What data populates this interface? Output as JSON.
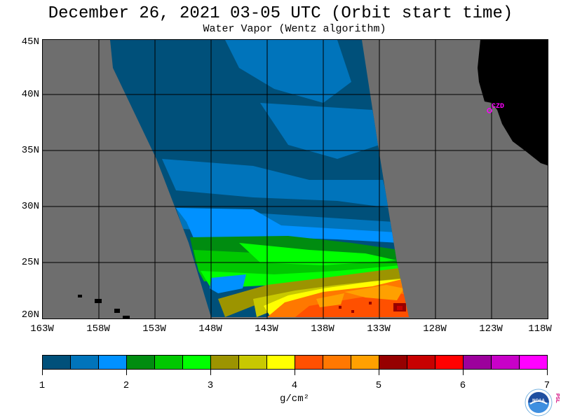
{
  "title": "December 26, 2021  03-05 UTC  (Orbit start time)",
  "subtitle": "Water Vapor (Wentz algorithm)",
  "map": {
    "lat_labels": [
      "45N",
      "40N",
      "35N",
      "30N",
      "25N",
      "20N"
    ],
    "lon_labels": [
      "163W",
      "158W",
      "153W",
      "148W",
      "143W",
      "138W",
      "133W",
      "128W",
      "123W",
      "118W"
    ],
    "station": {
      "label": "CZD",
      "color": "#ff00ff"
    },
    "land_color": "#000000",
    "no_data_color": "#6e6e6e"
  },
  "colorbar": {
    "colors": [
      "#00507a",
      "#0074bb",
      "#0091ff",
      "#008c10",
      "#00c800",
      "#00ff00",
      "#9c9400",
      "#c8c800",
      "#ffff00",
      "#ff5000",
      "#ff7800",
      "#ffa000",
      "#960000",
      "#c80000",
      "#ff0000",
      "#9c009c",
      "#c800c8",
      "#ff00ff"
    ],
    "tick_labels": [
      "1",
      "2",
      "3",
      "4",
      "5",
      "6",
      "7"
    ],
    "units": "g/cm²"
  },
  "logo": {
    "name": "NOAA",
    "side_text": "PSL"
  }
}
